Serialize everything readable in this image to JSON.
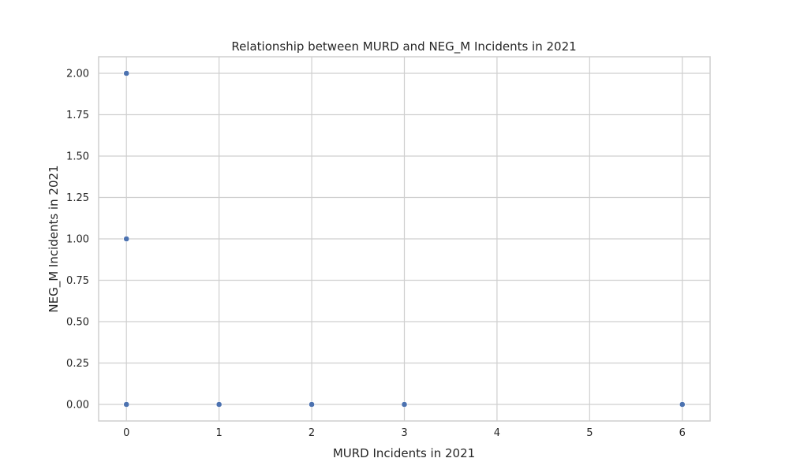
{
  "chart_data": {
    "type": "scatter",
    "title": "Relationship between MURD and NEG_M Incidents in 2021",
    "xlabel": "MURD Incidents in 2021",
    "ylabel": "NEG_M Incidents in 2021",
    "xlim": [
      -0.3,
      6.3
    ],
    "ylim": [
      -0.1,
      2.1
    ],
    "xticks": [
      0,
      1,
      2,
      3,
      4,
      5,
      6
    ],
    "yticks": [
      0,
      0.25,
      0.5,
      0.75,
      1.0,
      1.25,
      1.5,
      1.75,
      2.0
    ],
    "ytick_labels": [
      "0.00",
      "0.25",
      "0.50",
      "0.75",
      "1.00",
      "1.25",
      "1.50",
      "1.75",
      "2.00"
    ],
    "grid": true,
    "point_color": "#4c72b0",
    "series": [
      {
        "points": [
          {
            "x": 0,
            "y": 2
          },
          {
            "x": 0,
            "y": 1
          },
          {
            "x": 0,
            "y": 0
          },
          {
            "x": 1,
            "y": 0
          },
          {
            "x": 2,
            "y": 0
          },
          {
            "x": 3,
            "y": 0
          },
          {
            "x": 6,
            "y": 0
          }
        ]
      }
    ]
  }
}
